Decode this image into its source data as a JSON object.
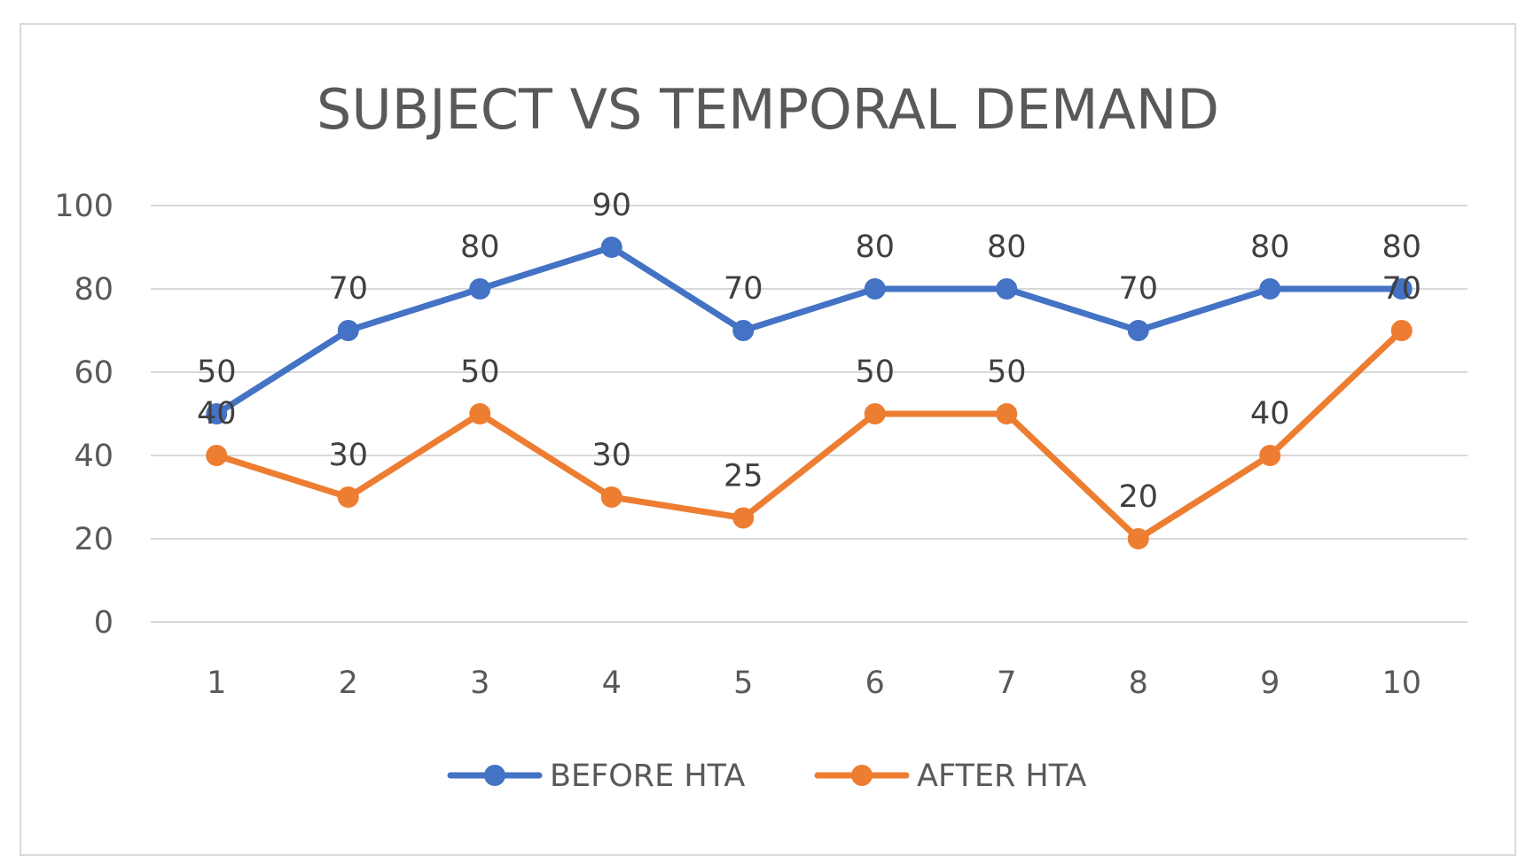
{
  "chart_data": {
    "type": "line",
    "title": "SUBJECT VS TEMPORAL DEMAND",
    "xlabel": "",
    "ylabel": "",
    "categories": [
      "1",
      "2",
      "3",
      "4",
      "5",
      "6",
      "7",
      "8",
      "9",
      "10"
    ],
    "ylim": [
      0,
      100
    ],
    "yticks": [
      "0",
      "20",
      "40",
      "60",
      "80",
      "100"
    ],
    "grid": true,
    "legend_position": "bottom",
    "series": [
      {
        "name": "BEFORE HTA",
        "color": "#4472c4",
        "values": [
          50,
          70,
          80,
          90,
          70,
          80,
          80,
          70,
          80,
          80
        ],
        "labels": [
          "50",
          "70",
          "80",
          "90",
          "70",
          "80",
          "80",
          "70",
          "80",
          "80"
        ]
      },
      {
        "name": "AFTER HTA",
        "color": "#ed7d31",
        "values": [
          40,
          30,
          50,
          30,
          25,
          50,
          50,
          20,
          40,
          70
        ],
        "labels": [
          "40",
          "30",
          "50",
          "30",
          "25",
          "50",
          "50",
          "20",
          "40",
          "70"
        ]
      }
    ]
  }
}
